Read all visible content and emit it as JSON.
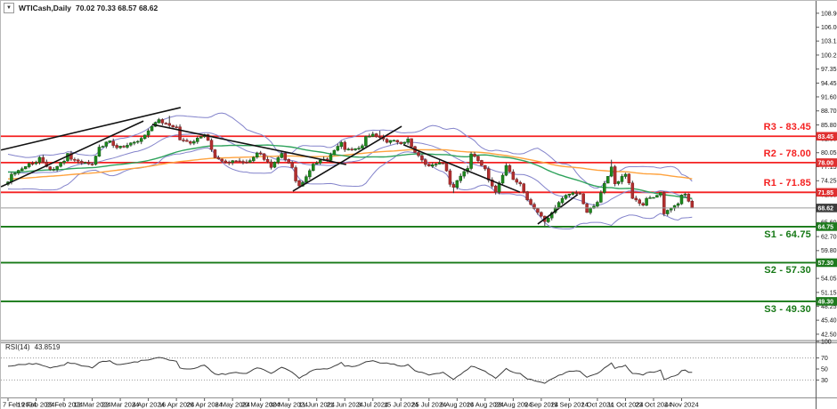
{
  "window": {
    "title_symbol": "WTICash,Daily",
    "title_ohlc": "70.02 70.33 68.57 68.62",
    "collapse_icon": "▼"
  },
  "chart_data": {
    "type": "candlestick",
    "symbol": "WTICash",
    "timeframe": "Daily",
    "title": "WTICash,Daily 70.02 70.33 68.57 68.62",
    "last_candle": {
      "open": 70.02,
      "high": 70.33,
      "low": 68.57,
      "close": 68.62
    },
    "current_price": 68.62,
    "candle_count": 196,
    "x_axis": {
      "label_every_n_candles": 8,
      "labels": [
        "7 Feb 2024",
        "19 Feb 2024",
        "29 Feb 2024",
        "12 Mar 2024",
        "22 Mar 2024",
        "4 Apr 2024",
        "16 Apr 2024",
        "26 Apr 2024",
        "8 May 2024",
        "20 May 2024",
        "30 May 2024",
        "11 Jun 2024",
        "21 Jun 2024",
        "3 Jul 2024",
        "15 Jul 2024",
        "25 Jul 2024",
        "6 Aug 2024",
        "16 Aug 2024",
        "28 Aug 2024",
        "9 Sep 2024",
        "19 Sep 2024",
        "1 Oct 2024",
        "11 Oct 2024",
        "23 Oct 2024",
        "4 Nov 2024"
      ]
    },
    "y_axis": {
      "price_ticks": [
        "108.90",
        "106.00",
        "103.15",
        "100.25",
        "97.35",
        "94.45",
        "91.60",
        "88.70",
        "85.80",
        "82.90",
        "80.05",
        "77.15",
        "74.25",
        "71.35",
        "68.45",
        "65.60",
        "62.70",
        "59.80",
        "56.90",
        "54.05",
        "51.15",
        "48.25",
        "45.40",
        "42.50"
      ],
      "rsi_ticks": [
        "100",
        "70",
        "50",
        "30"
      ]
    },
    "levels": {
      "resistance": [
        {
          "name": "R3",
          "price": 83.45,
          "label": "R3 - 83.45"
        },
        {
          "name": "R2",
          "price": 78.0,
          "label": "R2 - 78.00"
        },
        {
          "name": "R1",
          "price": 71.85,
          "label": "R1 - 71.85"
        }
      ],
      "support": [
        {
          "name": "S1",
          "price": 64.75,
          "label": "S1 - 64.75"
        },
        {
          "name": "S2",
          "price": 57.3,
          "label": "S2 - 57.30"
        },
        {
          "name": "S3",
          "price": 49.3,
          "label": "S3 - 49.30"
        }
      ]
    },
    "price_anchors": [
      [
        0,
        74.0
      ],
      [
        1,
        75.6
      ],
      [
        3,
        76.4
      ],
      [
        6,
        77.8
      ],
      [
        8,
        78.0
      ],
      [
        9,
        79.1
      ],
      [
        12,
        76.6
      ],
      [
        14,
        77.2
      ],
      [
        16,
        78.3
      ],
      [
        17,
        79.9
      ],
      [
        18,
        78.7
      ],
      [
        22,
        78.0
      ],
      [
        24,
        77.6
      ],
      [
        26,
        81.2
      ],
      [
        29,
        82.5
      ],
      [
        31,
        81.1
      ],
      [
        34,
        81.6
      ],
      [
        37,
        82.4
      ],
      [
        39,
        83.7
      ],
      [
        41,
        85.5
      ],
      [
        43,
        86.9
      ],
      [
        44,
        86.2
      ],
      [
        46,
        85.7
      ],
      [
        48,
        85.4
      ],
      [
        49,
        82.7
      ],
      [
        52,
        82.0
      ],
      [
        56,
        83.8
      ],
      [
        57,
        82.6
      ],
      [
        59,
        79.0
      ],
      [
        62,
        78.1
      ],
      [
        64,
        78.4
      ],
      [
        68,
        78.0
      ],
      [
        71,
        80.0
      ],
      [
        72,
        79.8
      ],
      [
        75,
        77.0
      ],
      [
        78,
        79.9
      ],
      [
        80,
        77.9
      ],
      [
        81,
        77.0
      ],
      [
        82,
        74.2
      ],
      [
        83,
        73.2
      ],
      [
        85,
        75.1
      ],
      [
        87,
        77.7
      ],
      [
        89,
        78.5
      ],
      [
        91,
        78.5
      ],
      [
        95,
        82.2
      ],
      [
        96,
        80.7
      ],
      [
        99,
        80.9
      ],
      [
        101,
        81.5
      ],
      [
        102,
        83.4
      ],
      [
        104,
        83.9
      ],
      [
        106,
        83.2
      ],
      [
        108,
        82.2
      ],
      [
        110,
        82.6
      ],
      [
        112,
        81.9
      ],
      [
        114,
        82.9
      ],
      [
        116,
        80.1
      ],
      [
        119,
        77.6
      ],
      [
        120,
        77.3
      ],
      [
        124,
        77.9
      ],
      [
        125,
        76.3
      ],
      [
        126,
        73.5
      ],
      [
        127,
        72.9
      ],
      [
        129,
        75.2
      ],
      [
        131,
        76.8
      ],
      [
        132,
        79.8
      ],
      [
        134,
        78.4
      ],
      [
        136,
        76.7
      ],
      [
        137,
        74.4
      ],
      [
        139,
        71.9
      ],
      [
        142,
        77.4
      ],
      [
        144,
        74.5
      ],
      [
        146,
        73.6
      ],
      [
        148,
        70.3
      ],
      [
        151,
        67.7
      ],
      [
        153,
        65.8
      ],
      [
        156,
        68.7
      ],
      [
        158,
        70.6
      ],
      [
        160,
        71.5
      ],
      [
        163,
        71.6
      ],
      [
        165,
        67.7
      ],
      [
        168,
        69.8
      ],
      [
        170,
        73.7
      ],
      [
        172,
        77.1
      ],
      [
        173,
        73.6
      ],
      [
        176,
        75.6
      ],
      [
        177,
        73.8
      ],
      [
        178,
        70.6
      ],
      [
        181,
        69.2
      ],
      [
        182,
        70.6
      ],
      [
        184,
        70.8
      ],
      [
        186,
        71.8
      ],
      [
        187,
        67.4
      ],
      [
        189,
        68.6
      ],
      [
        191,
        69.5
      ],
      [
        192,
        71.3
      ],
      [
        193,
        71.5
      ],
      [
        194,
        70.0
      ],
      [
        195,
        68.62
      ]
    ],
    "prehistory_anchors": [
      [
        -110,
        73.5
      ],
      [
        -85,
        72.3
      ],
      [
        -60,
        74.0
      ],
      [
        -42,
        75.5
      ],
      [
        -28,
        76.2
      ],
      [
        -15,
        78.0
      ],
      [
        -8,
        77.0
      ],
      [
        -4,
        73.2
      ],
      [
        -1,
        73.5
      ]
    ],
    "forced_extremes": [
      {
        "i": 46,
        "h": 87.7
      },
      {
        "i": 106,
        "h": 84.6
      },
      {
        "i": 127,
        "l": 71.7
      },
      {
        "i": 139,
        "l": 71.4
      },
      {
        "i": 153,
        "l": 64.9
      },
      {
        "i": 172,
        "h": 78.6
      }
    ],
    "trendlines": [
      [
        -2.0,
        80.6,
        49.2,
        89.4
      ],
      [
        -2.0,
        73.0,
        38.6,
        86.6
      ],
      [
        41.1,
        85.9,
        96.4,
        77.6
      ],
      [
        81.2,
        72.1,
        112.2,
        85.5
      ],
      [
        112.7,
        81.7,
        145.9,
        71.9
      ],
      [
        151.0,
        65.3,
        162.4,
        71.4
      ]
    ],
    "overlays": {
      "bollinger": {
        "period": 20,
        "deviation": 2,
        "color": "#8383cb"
      },
      "sma_fast": {
        "period": 50,
        "color": "#2fa35c"
      },
      "sma_slow": {
        "period": 100,
        "color": "#ffa23d"
      }
    },
    "rsi": {
      "label": "RSI(14)",
      "value": "43.8519",
      "period": 14,
      "levels": [
        70,
        30
      ],
      "anchors": [
        [
          0,
          55
        ],
        [
          4,
          58
        ],
        [
          8,
          60
        ],
        [
          12,
          52
        ],
        [
          16,
          57
        ],
        [
          17,
          62
        ],
        [
          22,
          55
        ],
        [
          24,
          52
        ],
        [
          26,
          62
        ],
        [
          29,
          65
        ],
        [
          31,
          58
        ],
        [
          34,
          60
        ],
        [
          39,
          66
        ],
        [
          43,
          71
        ],
        [
          46,
          66
        ],
        [
          48,
          64
        ],
        [
          49,
          52
        ],
        [
          52,
          50
        ],
        [
          56,
          57
        ],
        [
          57,
          52
        ],
        [
          59,
          41
        ],
        [
          62,
          40
        ],
        [
          64,
          43
        ],
        [
          68,
          42
        ],
        [
          71,
          52
        ],
        [
          72,
          51
        ],
        [
          75,
          42
        ],
        [
          78,
          53
        ],
        [
          81,
          44
        ],
        [
          83,
          33
        ],
        [
          85,
          40
        ],
        [
          87,
          48
        ],
        [
          91,
          50
        ],
        [
          95,
          62
        ],
        [
          96,
          55
        ],
        [
          99,
          55
        ],
        [
          102,
          63
        ],
        [
          104,
          65
        ],
        [
          106,
          61
        ],
        [
          110,
          59
        ],
        [
          112,
          55
        ],
        [
          114,
          58
        ],
        [
          116,
          47
        ],
        [
          120,
          39
        ],
        [
          124,
          44
        ],
        [
          127,
          31
        ],
        [
          129,
          40
        ],
        [
          132,
          55
        ],
        [
          134,
          51
        ],
        [
          136,
          46
        ],
        [
          139,
          33
        ],
        [
          142,
          51
        ],
        [
          144,
          44
        ],
        [
          146,
          42
        ],
        [
          148,
          32
        ],
        [
          153,
          24
        ],
        [
          156,
          35
        ],
        [
          160,
          46
        ],
        [
          163,
          46
        ],
        [
          165,
          35
        ],
        [
          168,
          42
        ],
        [
          170,
          52
        ],
        [
          172,
          61
        ],
        [
          173,
          51
        ],
        [
          176,
          57
        ],
        [
          178,
          42
        ],
        [
          181,
          39
        ],
        [
          182,
          43
        ],
        [
          184,
          44
        ],
        [
          186,
          48
        ],
        [
          187,
          31
        ],
        [
          189,
          36
        ],
        [
          191,
          40
        ],
        [
          192,
          47
        ],
        [
          193,
          48
        ],
        [
          194,
          44
        ],
        [
          195,
          43.85
        ]
      ]
    }
  },
  "colors": {
    "bull": "#1e8a1e",
    "bull_border": "#115511",
    "bear": "#b22f2f",
    "bear_border": "#7a1f1f",
    "wick": "#3a3a3a",
    "bollinger": "#8383cb",
    "sma50": "#2fa35c",
    "sma100": "#ffa23d",
    "resistance": "#f42121",
    "support": "#157815",
    "trendline": "#111111",
    "price_line": "#9a9a9a",
    "price_badge_bg": "#3c3c3c",
    "resistance_badge_bg": "#e03030",
    "support_badge_bg": "#1e7a1e",
    "rsi_line": "#3c3c3c",
    "axis_text": "#111111",
    "separator": "#8f8f8f"
  }
}
